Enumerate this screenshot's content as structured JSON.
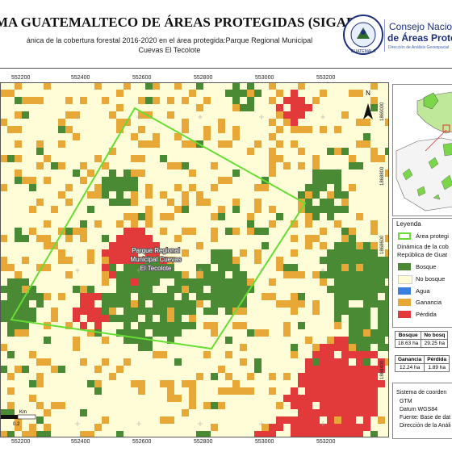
{
  "header": {
    "title": "MA GUATEMALTECO DE ÁREAS PROTEGIDAS  (SIGAP)",
    "subtitle_line1": "ánica de la cobertura forestal 2016-2020 en el área protegida:Parque Regional Municipal",
    "subtitle_line2": "Cuevas El Tecolote",
    "logo_line1": "Consejo Nacional",
    "logo_line2": "de Áreas Protegi",
    "logo_line3": "Dirección de Análisis Geoespacial",
    "seal_text": "GUATEMALA"
  },
  "map": {
    "x_ticks": [
      "552200",
      "552400",
      "552600",
      "552800",
      "553000",
      "553200"
    ],
    "area_label_line1": "Parque Regional",
    "area_label_line2": "Municipal Cuevas",
    "area_label_line3": "El Tecolote",
    "north_label": "N",
    "scale_unit": "Km",
    "scale_value": "0.2"
  },
  "inset": {
    "y_ticks": [
      "1869000",
      "1868800",
      "1868600",
      "1868400"
    ]
  },
  "legend": {
    "title": "Leyenda",
    "boundary_label": "Área protegi",
    "dynamics_line1": "Dinámica de la cob",
    "dynamics_line2": "República de Guat",
    "classes": [
      {
        "label": "Bosque",
        "color": "#4a8a34"
      },
      {
        "label": "No bosque",
        "color": "#fffdd8"
      },
      {
        "label": "Agua",
        "color": "#3a7fe0"
      },
      {
        "label": "Ganancia",
        "color": "#e8a838"
      },
      {
        "label": "Pérdida",
        "color": "#e23a3a"
      }
    ]
  },
  "stats": {
    "row1_headers": [
      "Bosque",
      "No bosq"
    ],
    "row1_values": [
      "18.63 ha",
      "29.25 ha"
    ],
    "row2_headers": [
      "Ganancia",
      "Pérdida"
    ],
    "row2_values": [
      "12.24 ha",
      "1.89 ha"
    ]
  },
  "notes": {
    "lines": [
      "Sistema de coorden",
      "GTM",
      "Datum WGS84",
      "Fuente: Base de dat",
      "Dirección de la Análi"
    ]
  },
  "colors": {
    "forest": "#4a8a34",
    "nonforest": "#fffdd8",
    "gain": "#e8a838",
    "loss": "#e23a3a",
    "boundary": "#66dd33"
  }
}
